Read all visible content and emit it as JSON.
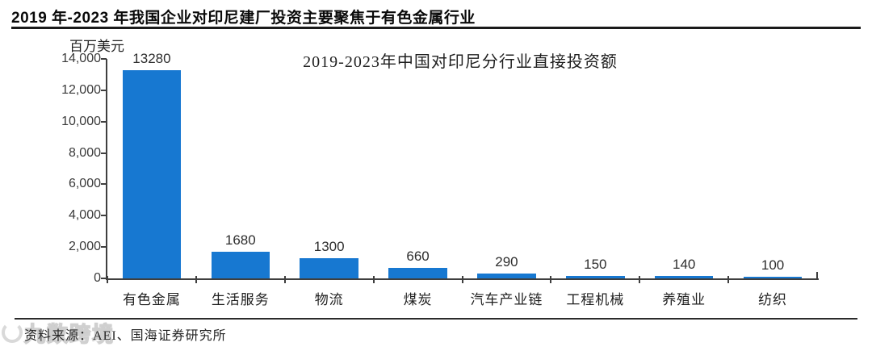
{
  "page": {
    "title": "2019 年-2023 年我国企业对印尼建厂投资主要聚焦于有色金属行业",
    "source_label": "资料来源：",
    "source_text": "AEI、国海证券研究所",
    "watermark_text": "九数跨境"
  },
  "chart_data": {
    "type": "bar",
    "title": "2019-2023年中国对印尼分行业直接投资额",
    "unit_label": "百万美元",
    "categories": [
      "有色金属",
      "生活服务",
      "物流",
      "煤炭",
      "汽车产业链",
      "工程机械",
      "养殖业",
      "纺织"
    ],
    "values": [
      13280,
      1680,
      1300,
      660,
      290,
      150,
      140,
      100
    ],
    "value_labels": [
      "13280",
      "1680",
      "1300",
      "660",
      "290",
      "150",
      "140",
      "100"
    ],
    "yticks": [
      {
        "label": "14,000",
        "value": 14000
      },
      {
        "label": "12,000",
        "value": 12000
      },
      {
        "label": "10,000",
        "value": 10000
      },
      {
        "label": "8,000",
        "value": 8000
      },
      {
        "label": "6,000",
        "value": 6000
      },
      {
        "label": "4,000",
        "value": 4000
      },
      {
        "label": "2,000",
        "value": 2000
      },
      {
        "label": "0",
        "value": 0
      }
    ],
    "ylim": [
      0,
      14000
    ],
    "bar_color": "#1778d1",
    "grid": false,
    "legend": "none",
    "xlabel": "",
    "ylabel": "百万美元"
  }
}
